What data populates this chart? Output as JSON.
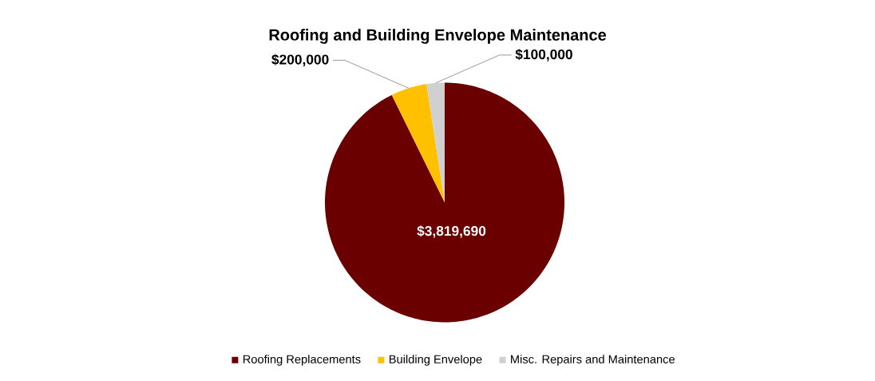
{
  "chart_data": {
    "type": "pie",
    "title": "Roofing and Building Envelope Maintenance",
    "categories": [
      "Roofing Replacements",
      "Building Envelope",
      "Misc. Repairs and Maintenance"
    ],
    "values": [
      3819690,
      200000,
      100000
    ],
    "value_labels": [
      "$3,819,690",
      "$200,000",
      "$100,000"
    ],
    "colors": [
      "#6b0000",
      "#ffc000",
      "#d0d0d0"
    ],
    "legend": "bottom"
  }
}
